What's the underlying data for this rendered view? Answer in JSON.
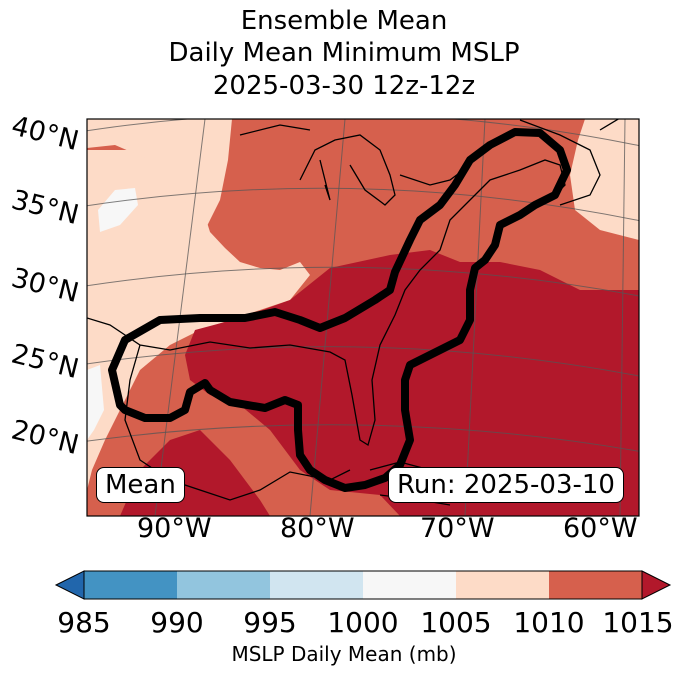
{
  "title": {
    "line1": "Ensemble Mean",
    "line2": "Daily Mean Minimum MSLP",
    "line3": "2025-03-30 12z-12z"
  },
  "map": {
    "lat_labels": [
      "40°N",
      "35°N",
      "30°N",
      "25°N",
      "20°N"
    ],
    "lon_labels": [
      "90°W",
      "80°W",
      "70°W",
      "60°W"
    ],
    "mean_box": "Mean",
    "run_box": "Run: 2025-03-10",
    "colors": {
      "c1000_1005": "#f7f7f7",
      "c1005_1010": "#fddbc7",
      "c1010_1015": "#d6604d",
      "c1015_plus": "#b2182b",
      "contour": "#000000"
    }
  },
  "colorbar": {
    "ticks": [
      "985",
      "990",
      "995",
      "1000",
      "1005",
      "1010",
      "1015"
    ],
    "label": "MSLP Daily Mean (mb)",
    "colors": [
      "#2166ac",
      "#4393c3",
      "#92c5de",
      "#d1e5f0",
      "#f7f7f7",
      "#fddbc7",
      "#d6604d",
      "#b2182b"
    ]
  }
}
